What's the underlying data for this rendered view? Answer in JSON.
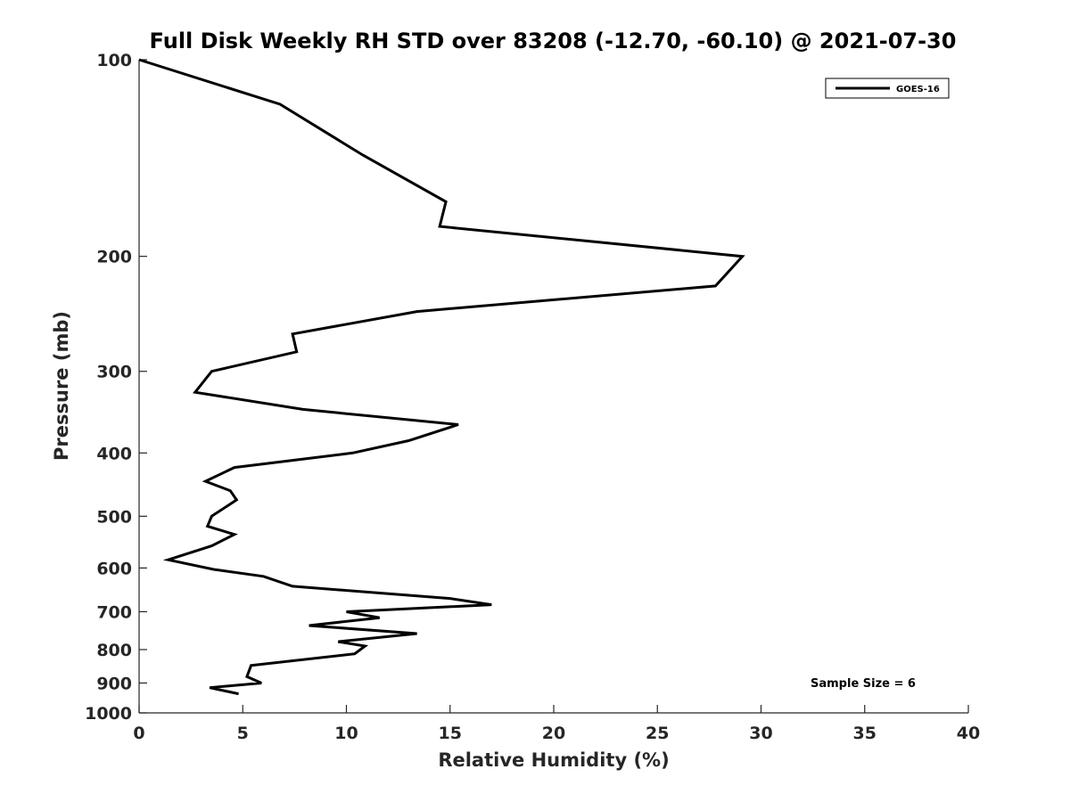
{
  "chart_data": {
    "type": "line",
    "title": "Full Disk Weekly RH STD over 83208 (-12.70, -60.10) @ 2021-07-30",
    "xlabel": "Relative Humidity (%)",
    "ylabel": "Pressure (mb)",
    "xlim": [
      0,
      40
    ],
    "ylim": [
      1000,
      100
    ],
    "yscale": "log",
    "y_reversed": true,
    "grid": false,
    "legend_position": "top-right",
    "x_ticks": [
      0,
      5,
      10,
      15,
      20,
      25,
      30,
      35,
      40
    ],
    "x_tick_labels": [
      "0",
      "5",
      "10",
      "15",
      "20",
      "25",
      "30",
      "35",
      "40"
    ],
    "y_ticks": [
      100,
      200,
      300,
      400,
      500,
      600,
      700,
      800,
      900,
      1000
    ],
    "y_tick_labels": [
      "100",
      "200",
      "300",
      "400",
      "500",
      "600",
      "700",
      "800",
      "900",
      "1000"
    ],
    "series": [
      {
        "name": "GOES-16",
        "color": "#000000",
        "x": [
          0.0,
          6.8,
          10.8,
          14.8,
          14.5,
          29.1,
          27.8,
          13.4,
          7.4,
          7.6,
          3.5,
          2.7,
          7.9,
          15.4,
          13.0,
          10.3,
          4.6,
          3.2,
          4.4,
          4.7,
          3.5,
          3.3,
          4.6,
          3.5,
          1.4,
          3.6,
          6.0,
          7.4,
          15.0,
          17.0,
          10.0,
          11.6,
          8.2,
          13.4,
          9.6,
          10.9,
          10.4,
          5.4,
          5.2,
          5.9,
          3.4,
          4.8
        ],
        "y": [
          100,
          117,
          140,
          165,
          180,
          200,
          222,
          243,
          263,
          280,
          300,
          323,
          343,
          362,
          383,
          400,
          421,
          442,
          457,
          472,
          500,
          518,
          533,
          555,
          583,
          603,
          618,
          640,
          668,
          683,
          700,
          715,
          735,
          756,
          778,
          790,
          812,
          846,
          880,
          900,
          915,
          935
        ]
      }
    ],
    "annotations": [
      "Sample Size = 6"
    ]
  }
}
